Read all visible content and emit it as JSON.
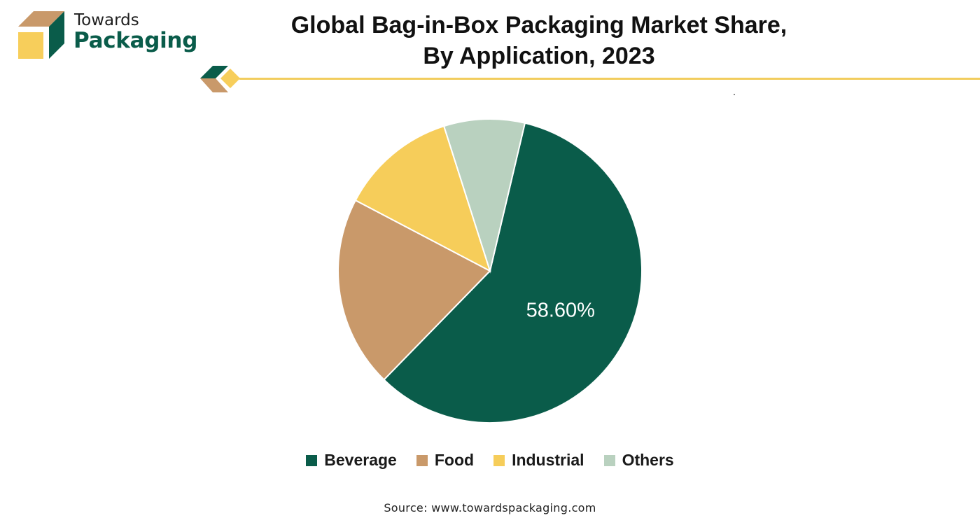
{
  "brand": {
    "line1": "Towards",
    "line2": "Packaging",
    "colors": {
      "green": "#0a5c4a",
      "tan": "#c9996a",
      "yellow": "#f7ce5b"
    }
  },
  "header": {
    "title_line1": "Global Bag-in-Box Packaging Market Share,",
    "title_line2": "By Application, 2023"
  },
  "chart_data": {
    "type": "pie",
    "title": "Global Bag-in-Box Packaging Market Share, By Application, 2023",
    "categories": [
      "Beverage",
      "Food",
      "Industrial",
      "Others"
    ],
    "values": [
      58.6,
      20.4,
      12.4,
      8.6
    ],
    "colors": [
      "#0a5c4a",
      "#c9996a",
      "#f6cd5a",
      "#b9d1bf"
    ],
    "data_labels": [
      "58.60%",
      "",
      "",
      ""
    ],
    "legend_position": "bottom"
  },
  "legend": {
    "items": [
      {
        "label": "Beverage",
        "color": "#0a5c4a"
      },
      {
        "label": "Food",
        "color": "#c9996a"
      },
      {
        "label": "Industrial",
        "color": "#f6cd5a"
      },
      {
        "label": "Others",
        "color": "#b9d1bf"
      }
    ]
  },
  "footer": {
    "source": "Source: www.towardspackaging.com"
  }
}
